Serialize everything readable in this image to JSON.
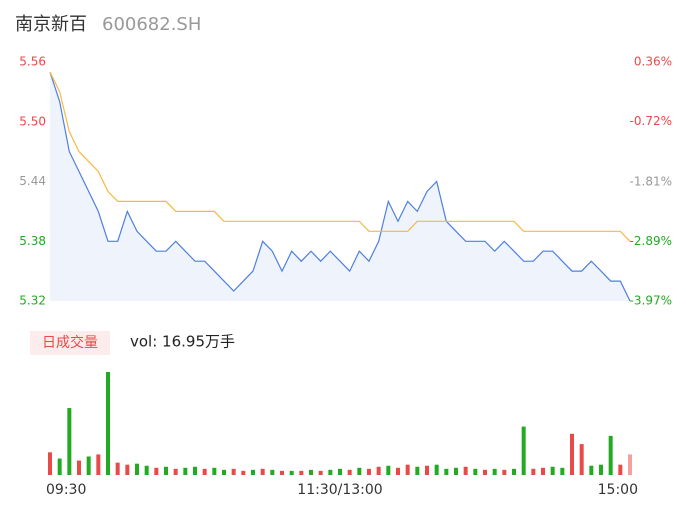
{
  "chart_data": [
    {
      "type": "line",
      "title": "南京新百",
      "subtitle": "600682.SH",
      "x": [
        0,
        4,
        8,
        12,
        16,
        20,
        24,
        28,
        32,
        36,
        40,
        44,
        48,
        52,
        56,
        60,
        64,
        68,
        72,
        76,
        80,
        84,
        88,
        92,
        96,
        100,
        104,
        108,
        112,
        116,
        120,
        124,
        128,
        132,
        136,
        140,
        144,
        148,
        152,
        156,
        160,
        164,
        168,
        172,
        176,
        180,
        184,
        188,
        192,
        196,
        200,
        204,
        208,
        212,
        216,
        220,
        224,
        228,
        232,
        236,
        240
      ],
      "xlim": [
        0,
        240
      ],
      "series": [
        {
          "color": "#4f7fe0",
          "fill": "#eef3fc",
          "values": [
            5.55,
            5.52,
            5.47,
            5.45,
            5.43,
            5.41,
            5.38,
            5.38,
            5.41,
            5.39,
            5.38,
            5.37,
            5.37,
            5.38,
            5.37,
            5.36,
            5.36,
            5.35,
            5.34,
            5.33,
            5.34,
            5.35,
            5.38,
            5.37,
            5.35,
            5.37,
            5.36,
            5.37,
            5.36,
            5.37,
            5.36,
            5.35,
            5.37,
            5.36,
            5.38,
            5.42,
            5.4,
            5.42,
            5.41,
            5.43,
            5.44,
            5.4,
            5.39,
            5.38,
            5.38,
            5.38,
            5.37,
            5.38,
            5.37,
            5.36,
            5.36,
            5.37,
            5.37,
            5.36,
            5.35,
            5.35,
            5.36,
            5.35,
            5.34,
            5.34,
            5.32
          ]
        },
        {
          "color": "#f5b942",
          "values": [
            5.55,
            5.53,
            5.49,
            5.47,
            5.46,
            5.45,
            5.43,
            5.42,
            5.42,
            5.42,
            5.42,
            5.42,
            5.42,
            5.41,
            5.41,
            5.41,
            5.41,
            5.41,
            5.4,
            5.4,
            5.4,
            5.4,
            5.4,
            5.4,
            5.4,
            5.4,
            5.4,
            5.4,
            5.4,
            5.4,
            5.4,
            5.4,
            5.4,
            5.39,
            5.39,
            5.39,
            5.39,
            5.39,
            5.4,
            5.4,
            5.4,
            5.4,
            5.4,
            5.4,
            5.4,
            5.4,
            5.4,
            5.4,
            5.4,
            5.39,
            5.39,
            5.39,
            5.39,
            5.39,
            5.39,
            5.39,
            5.39,
            5.39,
            5.39,
            5.39,
            5.38
          ]
        }
      ],
      "ylim": [
        5.32,
        5.56
      ],
      "yticks": [
        5.56,
        {
          "value": 5.5,
          "label": "5.50"
        },
        5.44,
        5.38,
        5.32
      ],
      "ytick_colors": [
        "#e84a4a",
        "#e84a4a",
        "#999999",
        "#22aa22",
        "#22aa22"
      ],
      "y2lim": [
        -3.97,
        0.36
      ],
      "y2ticks": [
        {
          "value": 0.36,
          "label": "0.36%"
        },
        {
          "value": -0.72,
          "label": "-0.72%"
        },
        {
          "value": -1.81,
          "label": "-1.81%"
        },
        {
          "value": -2.89,
          "label": "-2.89%"
        },
        {
          "value": -3.97,
          "label": "-3.97%"
        }
      ],
      "grid": false
    },
    {
      "type": "bar",
      "title": "日成交量",
      "subtitle": "vol: 16.95万手",
      "x": [
        0,
        4,
        8,
        12,
        16,
        20,
        24,
        28,
        32,
        36,
        40,
        44,
        48,
        52,
        56,
        60,
        64,
        68,
        72,
        76,
        80,
        84,
        88,
        92,
        96,
        100,
        104,
        108,
        112,
        116,
        120,
        124,
        128,
        132,
        136,
        140,
        144,
        148,
        152,
        156,
        160,
        164,
        168,
        172,
        176,
        180,
        184,
        188,
        192,
        196,
        200,
        204,
        208,
        212,
        216,
        220,
        224,
        228,
        232,
        236,
        240
      ],
      "xlim": [
        0,
        240
      ],
      "values": [
        22,
        16,
        65,
        14,
        18,
        20,
        100,
        12,
        10,
        11,
        9,
        7,
        8,
        6,
        7,
        8,
        6,
        7,
        5,
        6,
        4,
        5,
        6,
        5,
        4,
        4,
        4,
        5,
        4,
        5,
        6,
        5,
        7,
        6,
        8,
        9,
        7,
        10,
        8,
        9,
        10,
        6,
        7,
        8,
        6,
        5,
        6,
        5,
        6,
        47,
        6,
        7,
        8,
        7,
        40,
        30,
        9,
        10,
        38,
        10,
        20
      ],
      "colors": [
        "#e84a4a",
        "#22aa22",
        "#22aa22",
        "#e84a4a",
        "#22aa22",
        "#e84a4a",
        "#22aa22",
        "#e84a4a",
        "#e84a4a",
        "#22aa22",
        "#22aa22",
        "#e84a4a",
        "#22aa22",
        "#e84a4a",
        "#22aa22",
        "#22aa22",
        "#e84a4a",
        "#22aa22",
        "#22aa22",
        "#e84a4a",
        "#e84a4a",
        "#22aa22",
        "#e84a4a",
        "#22aa22",
        "#e84a4a",
        "#22aa22",
        "#e84a4a",
        "#22aa22",
        "#e84a4a",
        "#22aa22",
        "#22aa22",
        "#e84a4a",
        "#22aa22",
        "#e84a4a",
        "#e84a4a",
        "#22aa22",
        "#e84a4a",
        "#e84a4a",
        "#22aa22",
        "#e84a4a",
        "#22aa22",
        "#22aa22",
        "#22aa22",
        "#e84a4a",
        "#22aa22",
        "#e84a4a",
        "#22aa22",
        "#e84a4a",
        "#22aa22",
        "#22aa22",
        "#e84a4a",
        "#e84a4a",
        "#22aa22",
        "#22aa22",
        "#e84a4a",
        "#e84a4a",
        "#22aa22",
        "#22aa22",
        "#22aa22",
        "#e84a4a",
        "#f4a0a0"
      ],
      "ylim": [
        0,
        100
      ],
      "xticks": [
        {
          "value": 0,
          "label": "09:30"
        },
        {
          "value": 120,
          "label": "11:30/13:00"
        },
        {
          "value": 240,
          "label": "15:00"
        }
      ]
    }
  ]
}
